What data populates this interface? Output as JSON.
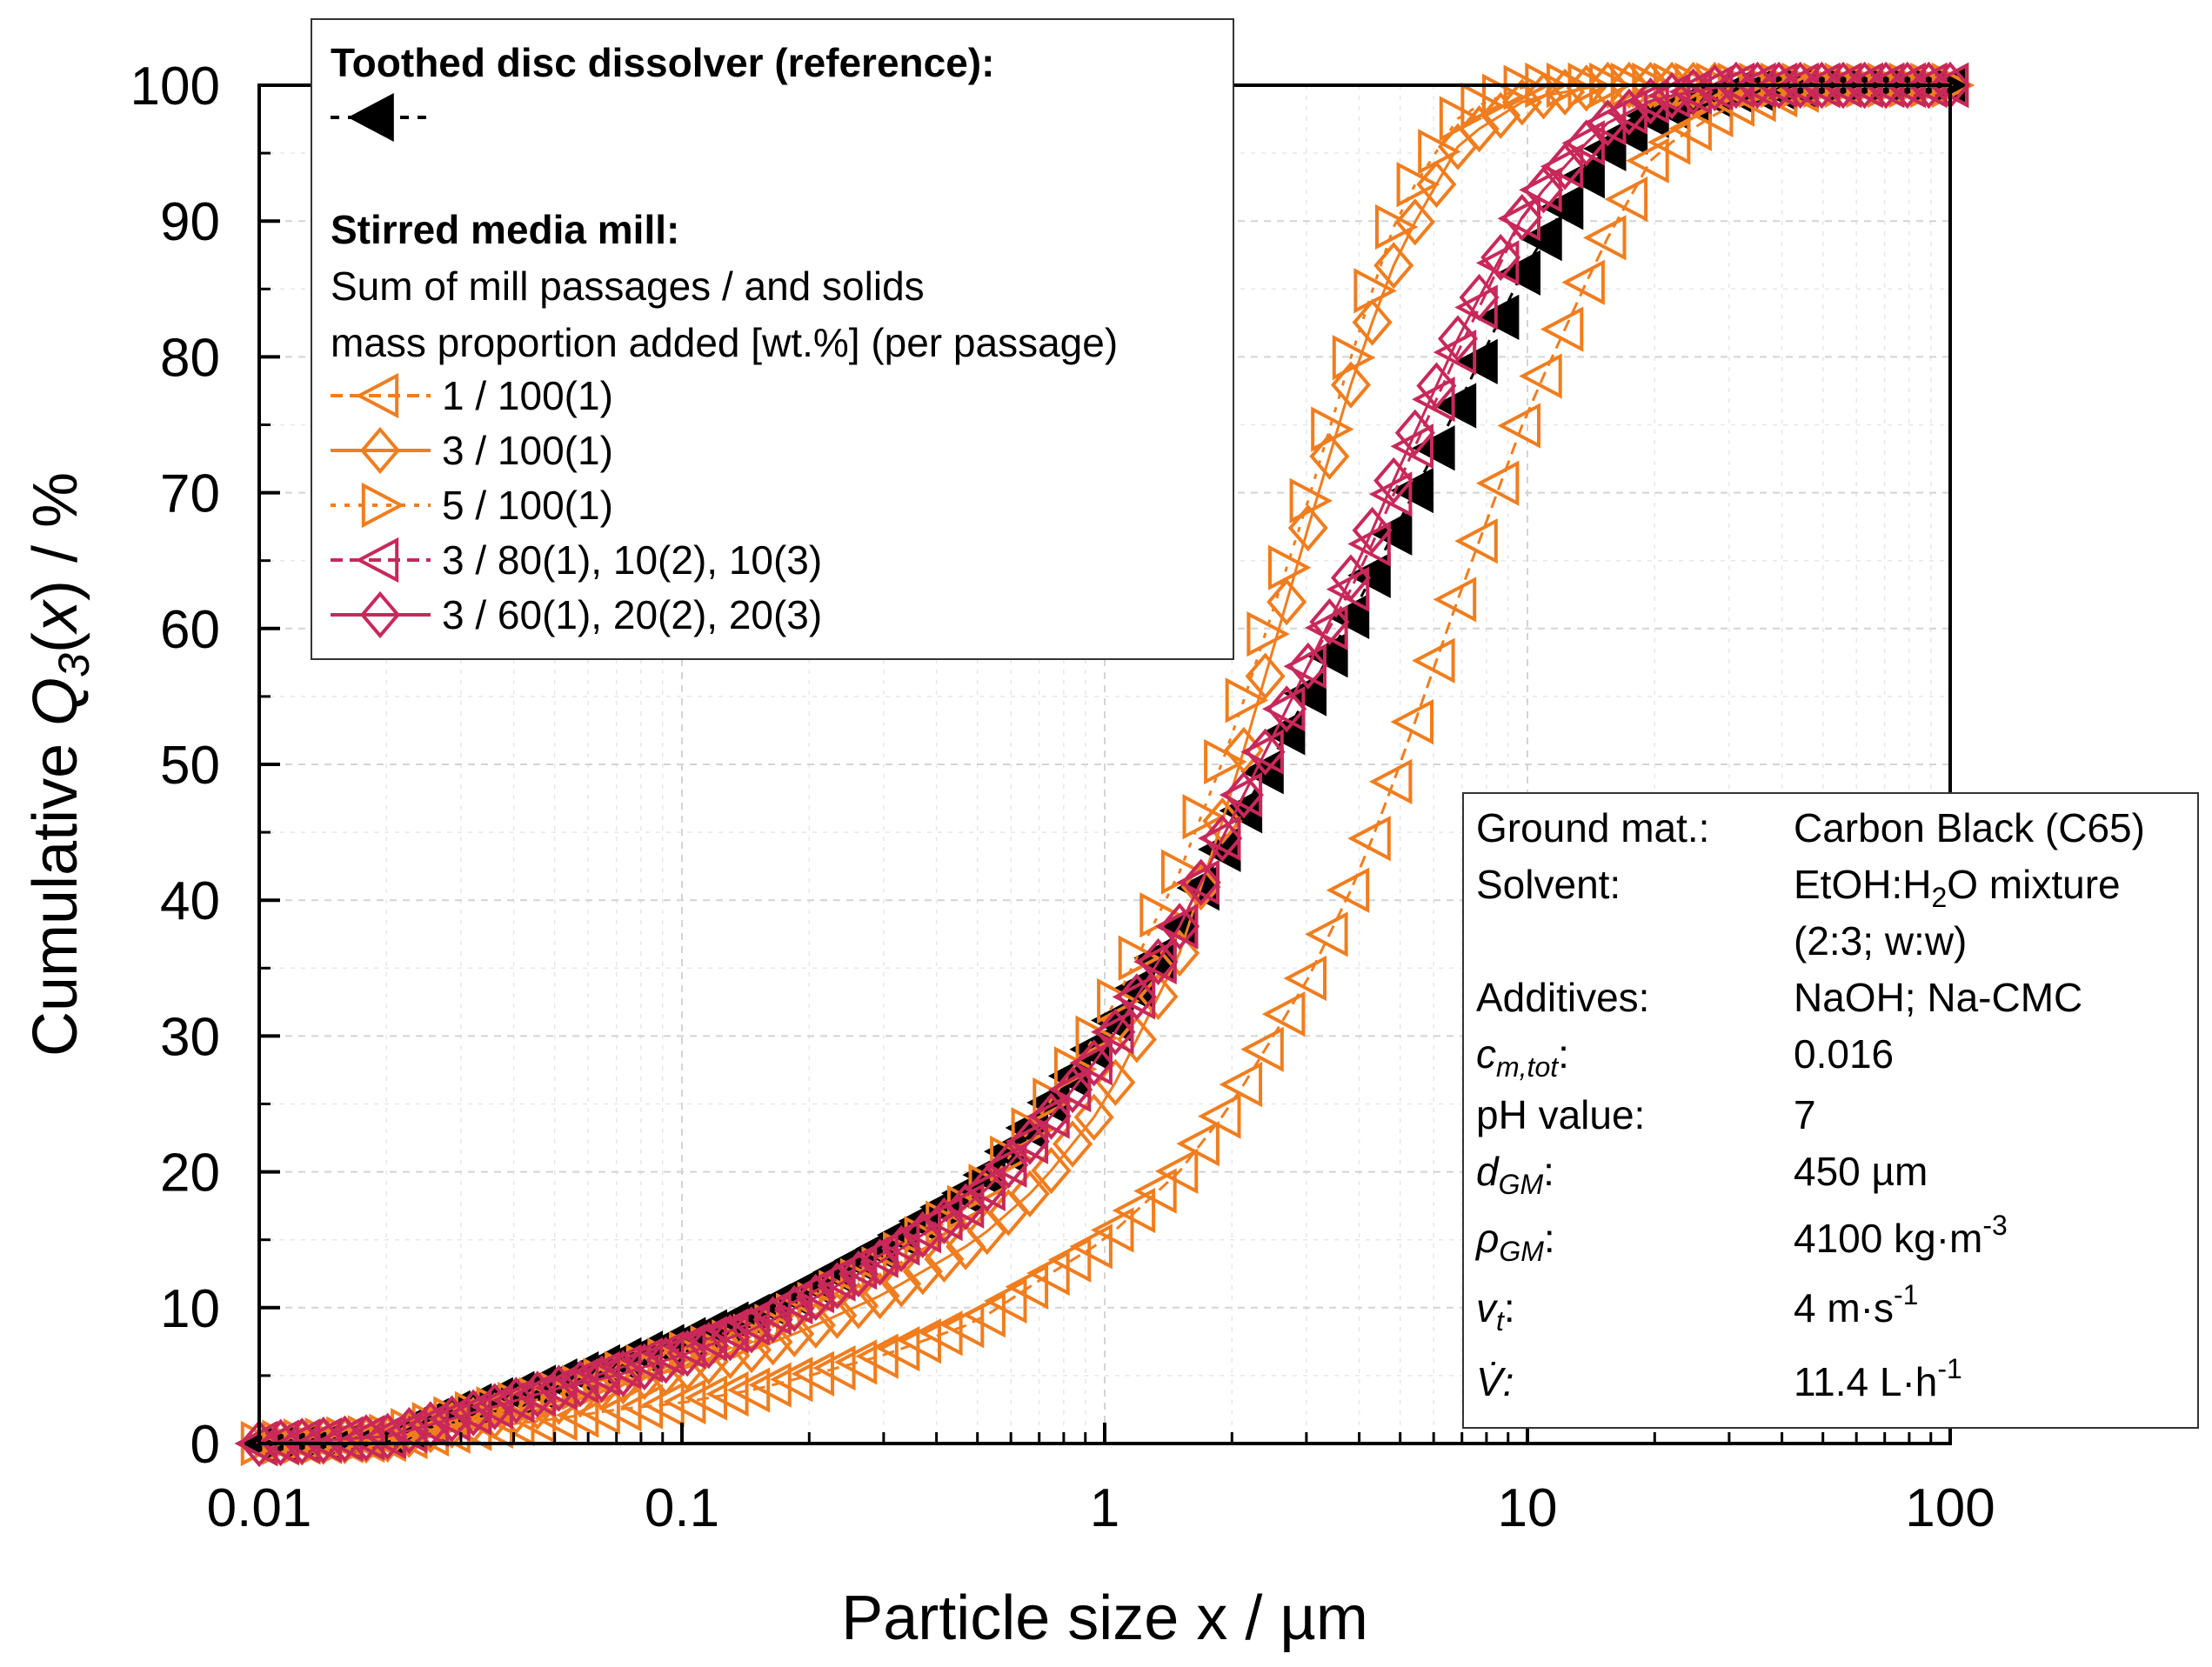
{
  "chart_data": {
    "type": "scatter",
    "xscale": "log",
    "xlim": [
      0.01,
      100
    ],
    "ylim": [
      0,
      100
    ],
    "xlabel": "Particle size x / µm",
    "ylabel_parts": {
      "pre": "Cumulative ",
      "q": "Q",
      "sub": "3",
      "open": "(",
      "var": "x",
      "close": ") / %"
    },
    "xticks": [
      {
        "value": 0.01,
        "label": "0.01"
      },
      {
        "value": 0.1,
        "label": "0.1"
      },
      {
        "value": 1,
        "label": "1"
      },
      {
        "value": 10,
        "label": "10"
      },
      {
        "value": 100,
        "label": "100"
      }
    ],
    "yticks": [
      {
        "value": 0,
        "label": "0"
      },
      {
        "value": 10,
        "label": "10"
      },
      {
        "value": 20,
        "label": "20"
      },
      {
        "value": 30,
        "label": "30"
      },
      {
        "value": 40,
        "label": "40"
      },
      {
        "value": 50,
        "label": "50"
      },
      {
        "value": 60,
        "label": "60"
      },
      {
        "value": 70,
        "label": "70"
      },
      {
        "value": 80,
        "label": "80"
      },
      {
        "value": 90,
        "label": "90"
      },
      {
        "value": 100,
        "label": "100"
      }
    ],
    "grid": true,
    "legend": {
      "position": "top-left",
      "reference_heading": "Toothed disc dissolver (reference):",
      "mill_heading": "Stirred media mill:",
      "mill_desc_1": "Sum of mill passages / and solids",
      "mill_desc_2": "mass proportion added [wt.%] (per passage)"
    },
    "series": [
      {
        "id": "ref",
        "name": "",
        "color": "#000000",
        "marker": "triangle-left-filled",
        "dash": "10 10",
        "x": [
          0.01,
          0.02,
          0.03,
          0.05,
          0.07,
          0.1,
          0.15,
          0.2,
          0.3,
          0.5,
          0.7,
          1,
          1.5,
          2,
          3,
          4,
          5,
          7,
          10,
          15,
          20,
          30,
          50,
          100
        ],
        "y": [
          0,
          0.5,
          2.5,
          4.5,
          6,
          7.5,
          9.5,
          11.5,
          14.5,
          19,
          24,
          30,
          38,
          45,
          55,
          62,
          68,
          77,
          87,
          95,
          98,
          99.5,
          100,
          100
        ]
      },
      {
        "id": "s1",
        "name": "1 / 100(1)",
        "color": "#f07d1e",
        "marker": "triangle-left",
        "dash": "14 8",
        "x": [
          0.01,
          0.02,
          0.03,
          0.05,
          0.07,
          0.1,
          0.15,
          0.2,
          0.3,
          0.5,
          0.7,
          1,
          1.5,
          2,
          3,
          4,
          5,
          7,
          10,
          15,
          20,
          30,
          50,
          100
        ],
        "y": [
          0,
          0.3,
          1,
          1.8,
          2.5,
          3,
          4,
          5,
          6.5,
          9,
          12,
          15,
          20,
          25,
          34,
          42,
          50,
          63,
          76,
          88,
          95,
          98.5,
          100,
          100
        ]
      },
      {
        "id": "s2",
        "name": "3 / 100(1)",
        "color": "#f07d1e",
        "marker": "diamond",
        "dash": "",
        "x": [
          0.01,
          0.02,
          0.03,
          0.05,
          0.07,
          0.1,
          0.15,
          0.2,
          0.3,
          0.5,
          0.7,
          1,
          1.5,
          2,
          3,
          4,
          5,
          7,
          10,
          15,
          20,
          30,
          50,
          100
        ],
        "y": [
          0,
          0.3,
          1.5,
          3,
          4.5,
          5.5,
          7,
          8.5,
          11,
          15,
          19,
          25,
          36,
          48,
          67,
          80,
          88,
          96,
          99,
          100,
          100,
          100,
          100,
          100
        ]
      },
      {
        "id": "s3",
        "name": "5 / 100(1)",
        "color": "#f07d1e",
        "marker": "triangle-right",
        "dash": "6 10",
        "x": [
          0.01,
          0.02,
          0.03,
          0.05,
          0.07,
          0.1,
          0.15,
          0.2,
          0.3,
          0.5,
          0.7,
          1,
          1.5,
          2,
          3,
          4,
          5,
          7,
          10,
          15,
          20,
          30,
          50,
          100
        ],
        "y": [
          0,
          0.5,
          2,
          3.5,
          5,
          6.5,
          8,
          10,
          13,
          18,
          24,
          31,
          42,
          52,
          69,
          82,
          91,
          98,
          100,
          100,
          100,
          100,
          100,
          100
        ]
      },
      {
        "id": "s4",
        "name": "3 / 80(1), 10(2), 10(3)",
        "color": "#c8285a",
        "marker": "triangle-left",
        "dash": "14 8",
        "x": [
          0.01,
          0.02,
          0.03,
          0.05,
          0.07,
          0.1,
          0.15,
          0.2,
          0.3,
          0.5,
          0.7,
          1,
          1.5,
          2,
          3,
          4,
          5,
          7,
          10,
          15,
          20,
          30,
          50,
          100
        ],
        "y": [
          0,
          0.5,
          2,
          4,
          5.5,
          7,
          9,
          11,
          14,
          18,
          23,
          29,
          38,
          46,
          57,
          64,
          71,
          81,
          91,
          97,
          99,
          100,
          100,
          100
        ]
      },
      {
        "id": "s5",
        "name": "3 / 60(1), 20(2), 20(3)",
        "color": "#c8285a",
        "marker": "diamond",
        "dash": "",
        "x": [
          0.01,
          0.02,
          0.03,
          0.05,
          0.07,
          0.1,
          0.15,
          0.2,
          0.3,
          0.5,
          0.7,
          1,
          1.5,
          2,
          3,
          4,
          5,
          7,
          10,
          15,
          20,
          30,
          50,
          100
        ],
        "y": [
          0,
          0.5,
          2,
          4,
          5,
          6.5,
          8.5,
          10.5,
          13.5,
          18,
          23,
          29,
          38,
          46,
          57,
          65,
          72,
          82,
          91,
          97,
          99,
          100,
          100,
          100
        ]
      }
    ],
    "info_box": {
      "position": "bottom-right",
      "rows": [
        {
          "label": "Ground mat.:",
          "value": "Carbon Black (C65)"
        },
        {
          "label": "Solvent:",
          "value": "EtOH:H2O mixture"
        },
        {
          "label": "",
          "value": "(2:3; w:w)"
        },
        {
          "label": "Additives:",
          "value": "NaOH; Na-CMC"
        },
        {
          "label": "cm,tot:",
          "value": "0.016"
        },
        {
          "label": "pH value:",
          "value": "7"
        },
        {
          "label": "dGM:",
          "value": "450 µm"
        },
        {
          "label": "ρGM:",
          "value": "4100 kg·m-3"
        },
        {
          "label": "vt:",
          "value": "4 m·s-1"
        },
        {
          "label": "V̇:",
          "value": "11.4 L·h-1"
        }
      ]
    }
  }
}
